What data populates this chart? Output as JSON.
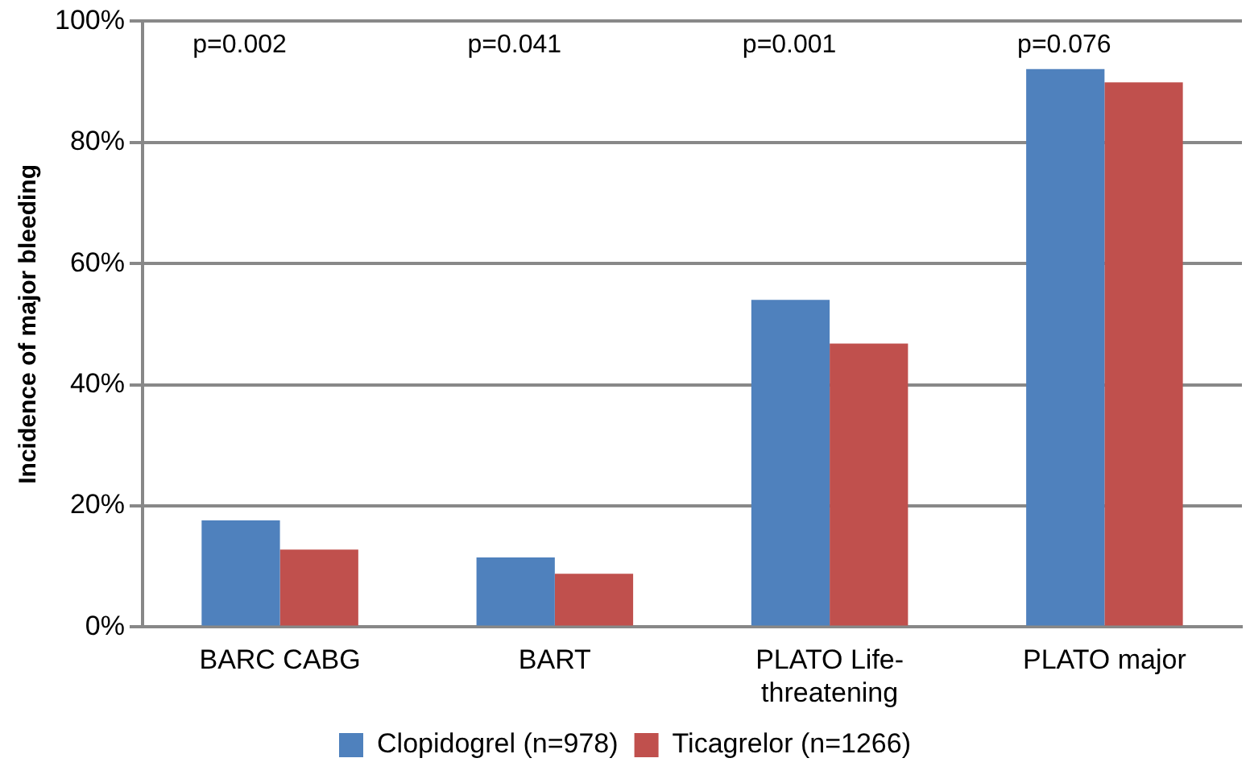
{
  "chart_data": {
    "type": "bar",
    "ylabel": "Incidence of major bleeding",
    "categories": [
      "BARC CABG",
      "BART",
      "PLATO Life-threatening",
      "PLATO major"
    ],
    "series": [
      {
        "name": "Clopidogrel (n=978)",
        "color": "#4f81bd",
        "values": [
          17.6,
          11.5,
          54.0,
          92.1
        ]
      },
      {
        "name": "Ticagrelor (n=1266)",
        "color": "#c0504d",
        "values": [
          12.8,
          8.8,
          46.8,
          89.9
        ]
      }
    ],
    "ylim": [
      0,
      100
    ],
    "yticks": [
      {
        "value": 0,
        "label": "0%"
      },
      {
        "value": 20,
        "label": "20%"
      },
      {
        "value": 40,
        "label": "40%"
      },
      {
        "value": 60,
        "label": "60%"
      },
      {
        "value": 80,
        "label": "80%"
      },
      {
        "value": 100,
        "label": "100%"
      }
    ],
    "grid": "y",
    "legend": "bottom",
    "annotations": [
      "p=0.002",
      "p=0.041",
      "p=0.001",
      "p=0.076"
    ]
  }
}
